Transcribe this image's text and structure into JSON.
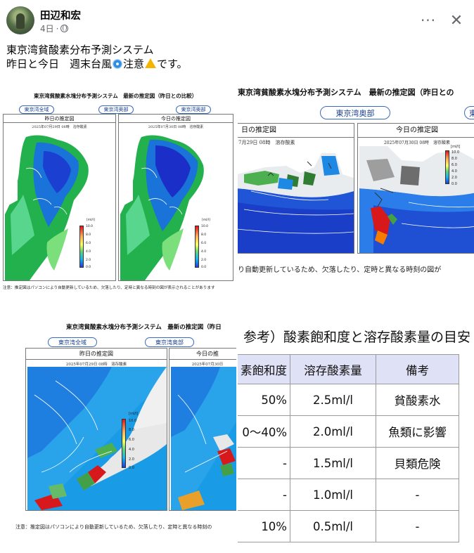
{
  "post": {
    "author": "田辺和宏",
    "time": "4日",
    "separator": "·",
    "line1": "東京湾貧酸素分布予測システム",
    "line2_a": "昨日と今日　週末台風",
    "line2_b": "注意",
    "line2_c": "です。",
    "more_label": "···",
    "close_label": "✕"
  },
  "icons": {
    "privacy": "globe-icon",
    "typhoon": "cyclone-emoji",
    "warning": "warning-emoji",
    "more": "more-options-icon",
    "close": "close-icon"
  },
  "images": {
    "img1": {
      "title": "東京湾貧酸素水塊分布予測システム　最新の推定図（昨日との比較）",
      "buttons": [
        "東京湾全域",
        "東京湾奥部",
        "東京湾奥部"
      ],
      "panel_left": "昨日の推定図",
      "panel_right": "今日の推定図",
      "sub_left": "2025年07月29日 08時　溶存酸素",
      "sub_right": "2025年07月30日 08時　溶存酸素",
      "colorbar_unit": "[ml/l]",
      "colorbar_ticks": [
        "10.0",
        "8.0",
        "6.0",
        "4.0",
        "2.0",
        "0.0"
      ],
      "footnote": "注意：推定図はパソコンにより自動更新しているため、欠落したり、定時と異なる時刻の図が表示されることがあります"
    },
    "img2": {
      "title": "東京湾貧酸素水塊分布予測システム　最新の推定図（昨日との",
      "button_center": "東京湾奥部",
      "button_right": "東",
      "panel_left": "日の推定図",
      "panel_right": "今日の推定図",
      "sub_left": "7月29日 08時　溶存酸素",
      "sub_right": "2025年07月30日 08時　溶存酸素",
      "colorbar_unit": "[ml/l]",
      "colorbar_ticks": [
        "10.0",
        "8.0",
        "6.0",
        "4.0",
        "2.0",
        "0.0"
      ],
      "footnote": "り自動更新しているため、欠落したり、定時と異なる時刻の図が"
    },
    "img3": {
      "title": "東京湾貧酸素水塊分布予測システム　最新の推定図（昨日",
      "buttons": [
        "東京湾全域",
        "東京湾奥部"
      ],
      "panel_left": "昨日の推定図",
      "panel_right": "今日の推",
      "sub_left": "2025年07月29日 08時　溶存酸素",
      "sub_right": "2025年07月30日",
      "colorbar_unit": "[ml/l]",
      "colorbar_ticks": [
        "10.0",
        "8.0",
        "6.0",
        "4.0",
        "2.0",
        "0.0"
      ],
      "footnote": "注意：推定図はパソコンにより自動更新しているため、欠落したり、定時と異なる時刻の"
    },
    "img4": {
      "title": "参考）酸素飽和度と溶存酸素量の目安",
      "headers": [
        "素飽和度",
        "溶存酸素量",
        "備考"
      ],
      "rows": [
        [
          "50%",
          "2.5ml/l",
          "貧酸素水"
        ],
        [
          "0〜40%",
          "2.0ml/l",
          "魚類に影響"
        ],
        [
          "-",
          "1.5ml/l",
          "貝類危険"
        ],
        [
          "-",
          "1.0ml/l",
          "-"
        ],
        [
          "10%",
          "0.5ml/l",
          "-"
        ]
      ]
    }
  }
}
